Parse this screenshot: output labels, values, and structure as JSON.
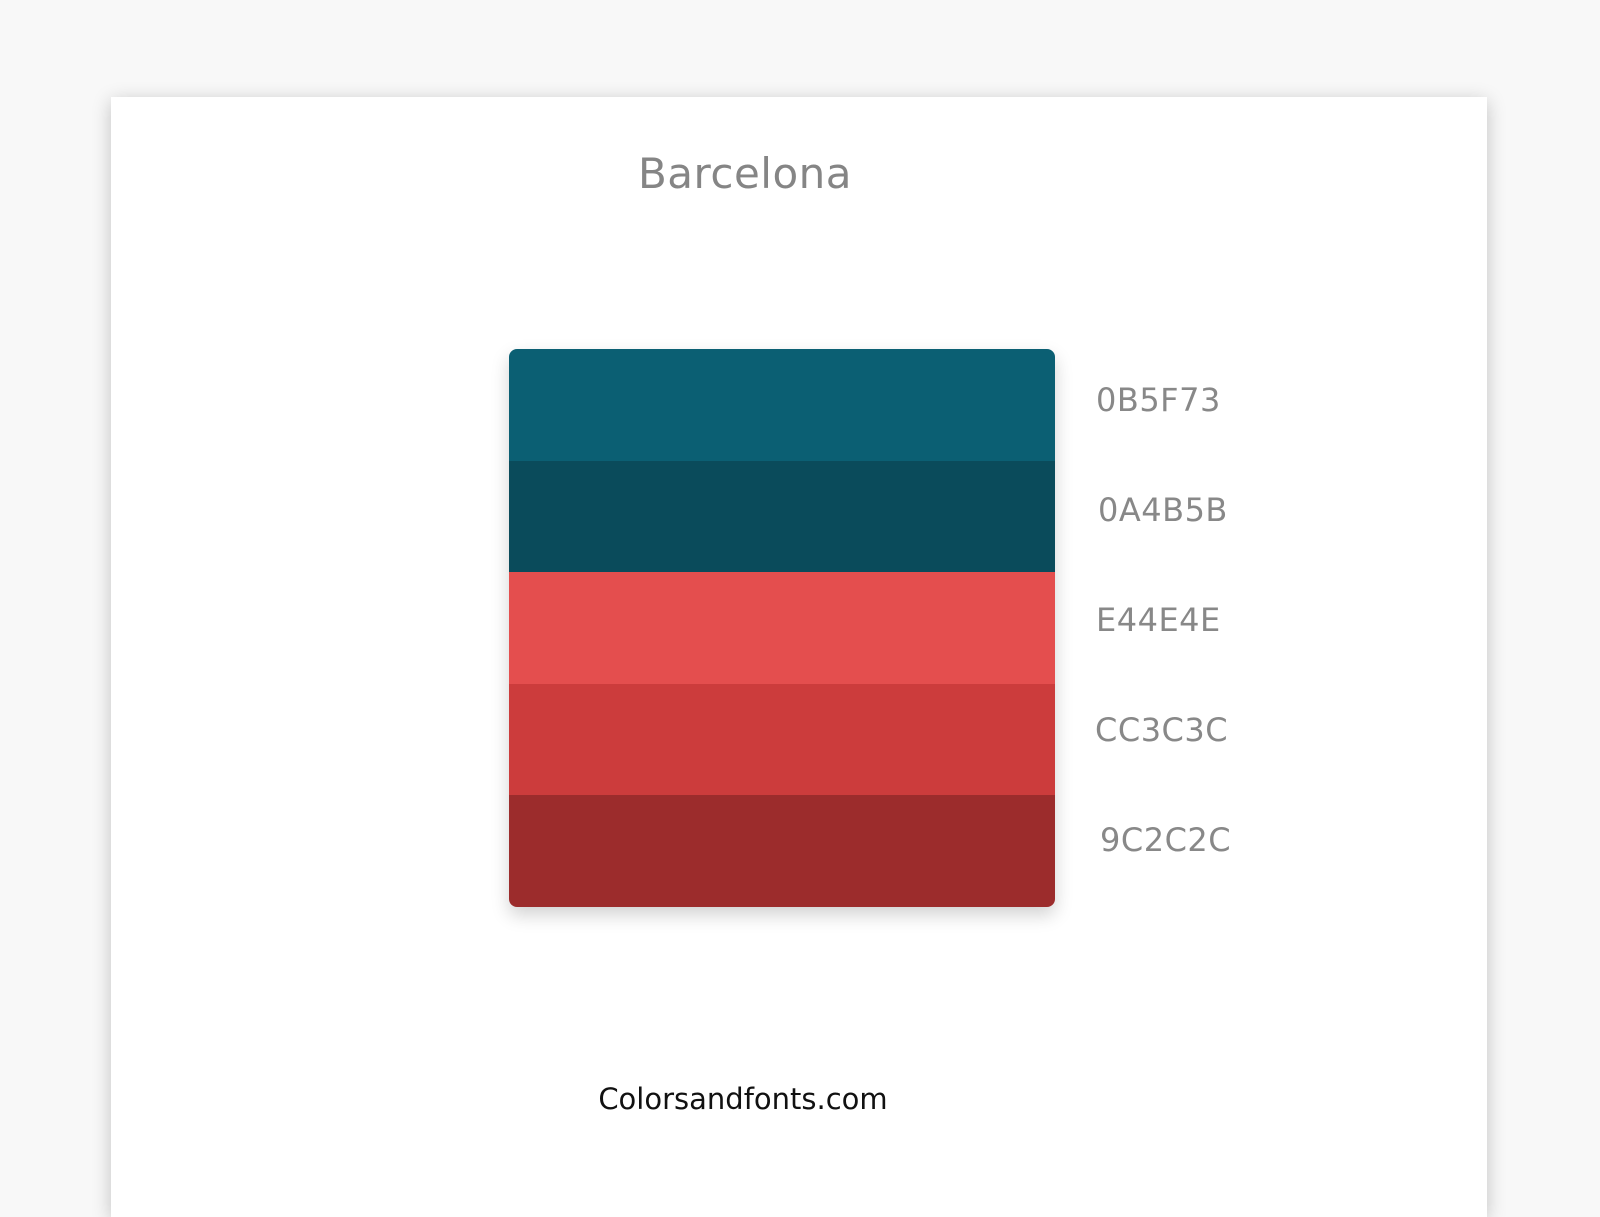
{
  "palette": {
    "name": "Barcelona",
    "colors": [
      {
        "hex_label": "0B5F73",
        "color": "#0B5F73"
      },
      {
        "hex_label": "0A4B5B",
        "color": "#0A4B5B"
      },
      {
        "hex_label": "E44E4E",
        "color": "#E44E4E"
      },
      {
        "hex_label": "CC3C3C",
        "color": "#CC3C3C"
      },
      {
        "hex_label": "9C2C2C",
        "color": "#9C2C2C"
      }
    ]
  },
  "footer": {
    "site": "Colorsandfonts.com"
  }
}
